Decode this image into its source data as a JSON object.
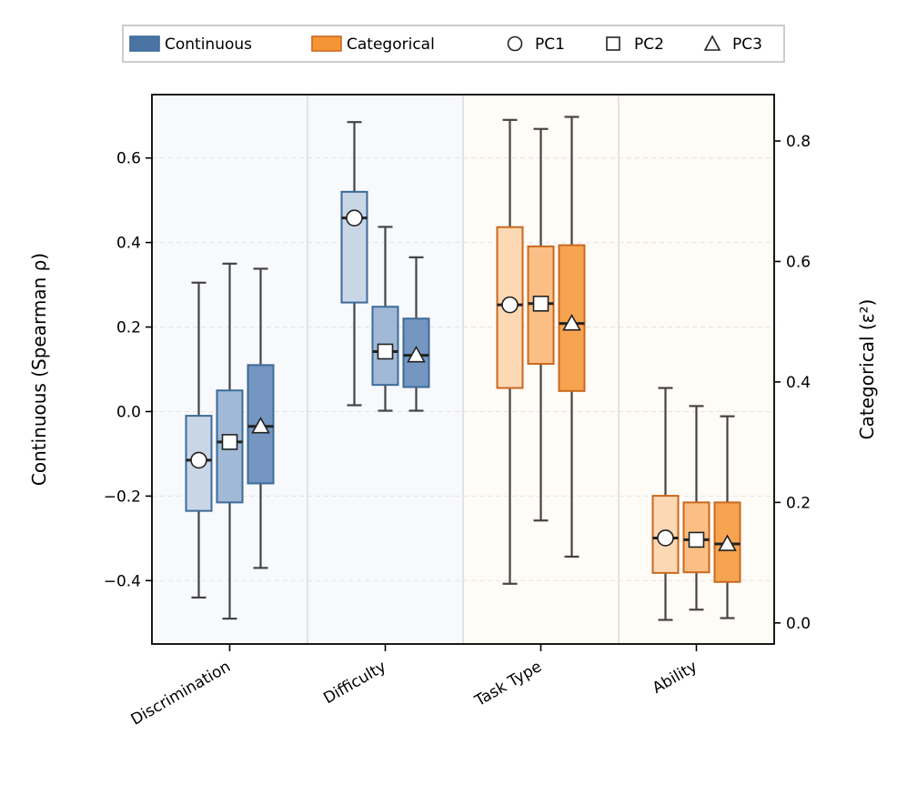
{
  "chart_data": {
    "type": "box",
    "categories": [
      "Discrimination",
      "Difficulty",
      "Task Type",
      "Ability"
    ],
    "group_axes": {
      "Discrimination": "left",
      "Difficulty": "left",
      "Task Type": "right",
      "Ability": "right"
    },
    "left_axis": {
      "label": "Continuous (Spearman ρ)",
      "ylim": [
        -0.55,
        0.75
      ],
      "ticks": [
        -0.4,
        -0.2,
        0.0,
        0.2,
        0.4,
        0.6
      ],
      "tick_labels": [
        "−0.4",
        "−0.2",
        "0.0",
        "0.2",
        "0.4",
        "0.6"
      ]
    },
    "right_axis": {
      "label": "Categorical (ε²)",
      "ylim": [
        -0.035,
        0.877
      ],
      "ticks": [
        0.0,
        0.2,
        0.4,
        0.6,
        0.8
      ],
      "tick_labels": [
        "0.0",
        "0.2",
        "0.4",
        "0.6",
        "0.8"
      ]
    },
    "grid": "horizontal-dashed",
    "legend": {
      "placement": "top-center",
      "entries": [
        {
          "label": "Continuous",
          "kind": "patch",
          "color": "#4a74a4"
        },
        {
          "label": "Categorical",
          "kind": "patch",
          "color": "#f59535"
        },
        {
          "label": "PC1",
          "kind": "marker",
          "marker": "circle"
        },
        {
          "label": "PC2",
          "kind": "marker",
          "marker": "square"
        },
        {
          "label": "PC3",
          "kind": "marker",
          "marker": "triangle"
        }
      ]
    },
    "series": [
      {
        "category": "Discrimination",
        "component": "PC1",
        "axis": "left",
        "whisker_low": -0.44,
        "q1": -0.235,
        "median": -0.115,
        "q3": -0.01,
        "whisker_high": 0.305,
        "mean": -0.115
      },
      {
        "category": "Discrimination",
        "component": "PC2",
        "axis": "left",
        "whisker_low": -0.49,
        "q1": -0.215,
        "median": -0.072,
        "q3": 0.05,
        "whisker_high": 0.35,
        "mean": -0.072
      },
      {
        "category": "Discrimination",
        "component": "PC3",
        "axis": "left",
        "whisker_low": -0.37,
        "q1": -0.17,
        "median": -0.035,
        "q3": 0.11,
        "whisker_high": 0.338,
        "mean": -0.035
      },
      {
        "category": "Difficulty",
        "component": "PC1",
        "axis": "left",
        "whisker_low": 0.015,
        "q1": 0.258,
        "median": 0.458,
        "q3": 0.52,
        "whisker_high": 0.685,
        "mean": 0.458
      },
      {
        "category": "Difficulty",
        "component": "PC2",
        "axis": "left",
        "whisker_low": 0.002,
        "q1": 0.063,
        "median": 0.142,
        "q3": 0.248,
        "whisker_high": 0.437,
        "mean": 0.142
      },
      {
        "category": "Difficulty",
        "component": "PC3",
        "axis": "left",
        "whisker_low": 0.002,
        "q1": 0.058,
        "median": 0.133,
        "q3": 0.22,
        "whisker_high": 0.365,
        "mean": 0.133
      },
      {
        "category": "Task Type",
        "component": "PC1",
        "axis": "right",
        "whisker_low": 0.065,
        "q1": 0.39,
        "median": 0.528,
        "q3": 0.657,
        "whisker_high": 0.835,
        "mean": 0.528
      },
      {
        "category": "Task Type",
        "component": "PC2",
        "axis": "right",
        "whisker_low": 0.17,
        "q1": 0.43,
        "median": 0.53,
        "q3": 0.625,
        "whisker_high": 0.82,
        "mean": 0.53
      },
      {
        "category": "Task Type",
        "component": "PC3",
        "axis": "right",
        "whisker_low": 0.11,
        "q1": 0.385,
        "median": 0.497,
        "q3": 0.627,
        "whisker_high": 0.84,
        "mean": 0.497
      },
      {
        "category": "Ability",
        "component": "PC1",
        "axis": "right",
        "whisker_low": 0.005,
        "q1": 0.083,
        "median": 0.141,
        "q3": 0.211,
        "whisker_high": 0.39,
        "mean": 0.141
      },
      {
        "category": "Ability",
        "component": "PC2",
        "axis": "right",
        "whisker_low": 0.022,
        "q1": 0.084,
        "median": 0.138,
        "q3": 0.2,
        "whisker_high": 0.36,
        "mean": 0.138
      },
      {
        "category": "Ability",
        "component": "PC3",
        "axis": "right",
        "whisker_low": 0.008,
        "q1": 0.068,
        "median": 0.131,
        "q3": 0.2,
        "whisker_high": 0.343,
        "mean": 0.131
      }
    ],
    "colors": {
      "continuous": [
        "#c9d6e6",
        "#a1b9d6",
        "#7496c0"
      ],
      "continuous_edge": "#3d6a98",
      "categorical": [
        "#fdd8b4",
        "#fbbf85",
        "#f7a450"
      ],
      "categorical_edge": "#c9691f",
      "bg_continuous": "#f7f9fc",
      "bg_categorical": "#fffbf6"
    }
  }
}
